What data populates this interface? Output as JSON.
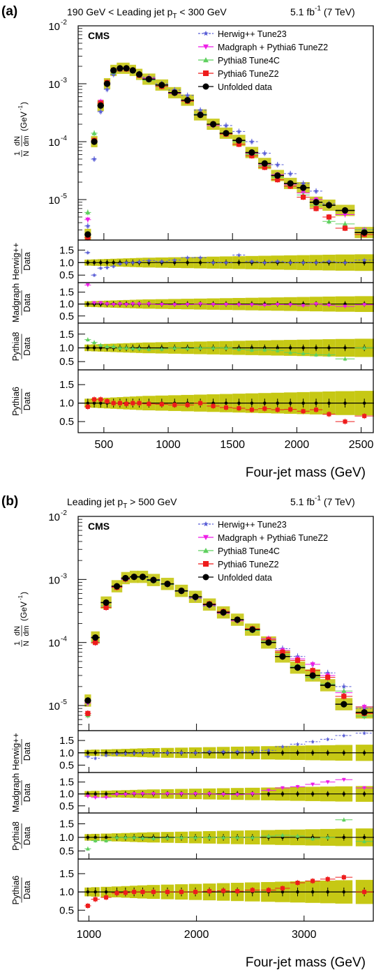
{
  "panels": [
    {
      "letter": "(a)",
      "header_left": "190 GeV < Leading jet p",
      "header_left_sub": "T",
      "header_left_tail": " < 300 GeV",
      "lumi": "5.1 fb",
      "lumi_sup": "-1",
      "energy": " (7 TeV)",
      "cms": "CMS",
      "xlabel": "Four-jet mass (GeV)"
    },
    {
      "letter": "(b)",
      "header_left": "Leading jet p",
      "header_left_sub": "T",
      "header_left_tail": " > 500 GeV",
      "lumi": "5.1 fb",
      "lumi_sup": "-1",
      "energy": " (7 TeV)",
      "cms": "CMS",
      "xlabel": "Four-jet mass (GeV)"
    }
  ],
  "ylabel_main": {
    "frac1": "1",
    "frac2": "N",
    "dN": "dN",
    "dm": "dm",
    "unit": "(GeV",
    "unit_sup": "-1",
    "unit_close": ")"
  },
  "ratio_label_den": "Data",
  "colors": {
    "herwig": "#5a5fd6",
    "madgraph": "#ee1ee6",
    "pythia8": "#5fd05f",
    "pythia6": "#ee1c1c",
    "data": "#000000",
    "band": "#c6c814"
  },
  "chart_data": [
    {
      "type": "scatter",
      "panel": "a",
      "xlim": [
        300,
        2600
      ],
      "ylim": [
        2e-06,
        0.01
      ],
      "yscale": "log",
      "x_ticks": [
        "500",
        "1000",
        "1500",
        "2000",
        "2500"
      ],
      "x_tick_values": [
        500,
        1000,
        1500,
        2000,
        2500
      ],
      "y_ticks": [
        "10",
        "10",
        "10",
        "10"
      ],
      "y_tick_exps": [
        "-2",
        "-3",
        "-4",
        "-5"
      ],
      "legend_position": "top-right",
      "x": [
        375,
        425,
        475,
        525,
        575,
        625,
        675,
        725,
        775,
        850,
        950,
        1050,
        1150,
        1250,
        1350,
        1450,
        1550,
        1650,
        1750,
        1850,
        1950,
        2050,
        2150,
        2250,
        2375,
        2525
      ],
      "xerr": [
        25,
        25,
        25,
        25,
        25,
        25,
        25,
        25,
        25,
        50,
        50,
        50,
        50,
        50,
        50,
        50,
        50,
        50,
        50,
        50,
        50,
        50,
        50,
        50,
        75,
        75
      ],
      "series": [
        {
          "name": "Herwig++ Tune23",
          "key": "herwig",
          "marker": "star",
          "values": [
            3.5e-06,
            5e-05,
            0.00033,
            0.0008,
            0.00145,
            0.00175,
            0.00185,
            0.0017,
            0.0015,
            0.0013,
            0.001,
            0.00078,
            0.00063,
            0.00035,
            0.0002,
            0.00019,
            0.00015,
            0.0001,
            6.3e-05,
            4e-05,
            2.8e-05,
            1.9e-05,
            1.4e-05,
            8.5e-06,
            6.5e-06,
            3e-06
          ]
        },
        {
          "name": "Madgraph + Pythia6 TuneZ2",
          "key": "madgraph",
          "marker": "triangle-down",
          "values": [
            4.5e-06,
            0.0001,
            0.00049,
            0.001,
            0.0016,
            0.0018,
            0.0018,
            0.0017,
            0.00145,
            0.00125,
            0.00095,
            0.00068,
            0.00051,
            0.0003,
            0.00019,
            0.00014,
            0.0001,
            6.3e-05,
            4e-05,
            2.7e-05,
            1.8e-05,
            1.3e-05,
            1e-05,
            8e-06,
            5.5e-06,
            3e-06
          ]
        },
        {
          "name": "Pythia8 Tune4C",
          "key": "pythia8",
          "marker": "triangle-up",
          "values": [
            6e-06,
            0.00014,
            0.00046,
            0.00105,
            0.0016,
            0.00175,
            0.00185,
            0.00165,
            0.0014,
            0.00115,
            0.0009,
            0.0007,
            0.00051,
            0.0003,
            0.0002,
            0.00014,
            0.0001,
            6e-05,
            3.8e-05,
            2.4e-05,
            1.7e-05,
            1.2e-05,
            8e-06,
            4.2e-06,
            3.8e-06,
            3e-06
          ]
        },
        {
          "name": "Pythia6 TuneZ2",
          "key": "pythia6",
          "marker": "square",
          "values": [
            2.2e-06,
            0.000105,
            0.00046,
            0.00105,
            0.0017,
            0.0018,
            0.0018,
            0.0017,
            0.0014,
            0.0012,
            0.0009,
            0.0007,
            0.0005,
            0.00029,
            0.0002,
            0.000135,
            9e-05,
            5.7e-05,
            3.6e-05,
            2.2e-05,
            1.7e-05,
            1.1e-05,
            7e-06,
            5e-06,
            3.2e-06,
            2.5e-06
          ]
        },
        {
          "name": "Unfolded data",
          "key": "data",
          "marker": "circle",
          "values": [
            2.5e-06,
            0.0001,
            0.00042,
            0.001,
            0.0017,
            0.00185,
            0.00185,
            0.0017,
            0.00145,
            0.0012,
            0.00095,
            0.0007,
            0.00052,
            0.00029,
            0.0002,
            0.00014,
            0.000105,
            6.5e-05,
            4.2e-05,
            2.6e-05,
            1.9e-05,
            1.6e-05,
            9e-06,
            8e-06,
            6.5e-06,
            2.7e-06
          ]
        }
      ],
      "ratios": [
        {
          "name": "Herwig++",
          "den": "Data",
          "key": "herwig",
          "marker": "star",
          "values": [
            1.4,
            0.5,
            0.78,
            0.8,
            0.85,
            0.95,
            1.0,
            1.0,
            1.03,
            1.08,
            1.05,
            1.1,
            1.2,
            1.2,
            1.0,
            1.0,
            1.3,
            1.05,
            1.0,
            1.05,
            1.0,
            1.0,
            1.0,
            1.05,
            1.0,
            1.1
          ]
        },
        {
          "name": "Madgraph",
          "den": "Data",
          "key": "madgraph",
          "marker": "triangle-down",
          "values": [
            1.8,
            1.05,
            1.05,
            1.0,
            0.98,
            1.0,
            0.98,
            1.0,
            1.0,
            1.0,
            0.98,
            0.97,
            0.98,
            1.0,
            0.98,
            0.98,
            0.97,
            0.97,
            0.95,
            0.98,
            0.97,
            0.93,
            1.0,
            0.95,
            0.9,
            0.97
          ]
        },
        {
          "name": "Pythia8",
          "den": "Data",
          "key": "pythia8",
          "marker": "triangle-up",
          "values": [
            1.3,
            1.2,
            1.1,
            1.05,
            1.05,
            1.0,
            1.0,
            0.98,
            0.97,
            0.95,
            0.96,
            1.0,
            0.98,
            1.0,
            1.0,
            1.0,
            0.95,
            0.92,
            0.93,
            0.9,
            0.83,
            0.8,
            0.75,
            0.75,
            0.6,
            1.0
          ]
        },
        {
          "name": "Pythia6",
          "den": "Data",
          "key": "pythia6",
          "marker": "square",
          "values": [
            0.9,
            1.1,
            1.1,
            1.05,
            1.0,
            1.0,
            0.98,
            1.0,
            1.0,
            0.98,
            0.97,
            0.95,
            0.95,
            1.0,
            0.92,
            0.88,
            0.86,
            0.82,
            0.85,
            0.82,
            0.83,
            0.78,
            0.82,
            0.7,
            0.5,
            0.65
          ]
        }
      ],
      "ratio_ylim": [
        0.2,
        1.9
      ],
      "ratio_ticks": [
        "0.5",
        "1.0",
        "1.5"
      ]
    },
    {
      "type": "scatter",
      "panel": "b",
      "xlim": [
        900,
        3650
      ],
      "ylim": [
        4e-06,
        0.01
      ],
      "yscale": "log",
      "x_ticks": [
        "1000",
        "2000",
        "3000"
      ],
      "x_tick_values": [
        1000,
        2000,
        3000
      ],
      "y_ticks": [
        "10",
        "10",
        "10",
        "10"
      ],
      "y_tick_exps": [
        "-2",
        "-3",
        "-4",
        "-5"
      ],
      "legend_position": "top-right",
      "x": [
        990,
        1060,
        1160,
        1260,
        1340,
        1420,
        1500,
        1600,
        1730,
        1860,
        1990,
        2120,
        2250,
        2380,
        2520,
        2670,
        2800,
        2940,
        3080,
        3220,
        3370,
        3560
      ],
      "xerr": [
        30,
        40,
        50,
        50,
        40,
        40,
        50,
        60,
        60,
        60,
        60,
        60,
        60,
        60,
        70,
        70,
        70,
        70,
        70,
        70,
        80,
        80
      ],
      "series": [
        {
          "name": "Herwig++ Tune23",
          "key": "herwig",
          "marker": "star",
          "values": [
            1.1e-05,
            0.0001,
            0.00038,
            0.00075,
            0.001,
            0.0011,
            0.0011,
            0.001,
            0.00085,
            0.00065,
            0.0005,
            0.00038,
            0.0003,
            0.00023,
            0.00016,
            0.00011,
            8e-05,
            6e-05,
            4.5e-05,
            3.3e-05,
            2e-05,
            9e-06
          ]
        },
        {
          "name": "Madgraph + Pythia6 TuneZ2",
          "key": "madgraph",
          "marker": "triangle-down",
          "values": [
            1.1e-05,
            0.0001,
            0.00036,
            0.00077,
            0.00102,
            0.0011,
            0.0011,
            0.00098,
            0.00083,
            0.00065,
            0.00051,
            0.00039,
            0.00029,
            0.00022,
            0.00016,
            0.000115,
            7.5e-05,
            5.5e-05,
            4.5e-05,
            3e-05,
            1.6e-05,
            9.5e-06
          ]
        },
        {
          "name": "Pythia8 Tune4C",
          "key": "pythia8",
          "marker": "triangle-up",
          "values": [
            7e-06,
            0.000105,
            0.00038,
            0.00078,
            0.00105,
            0.0011,
            0.00108,
            0.00095,
            0.00083,
            0.00065,
            0.00052,
            0.0004,
            0.0003,
            0.00023,
            0.000155,
            0.000105,
            6.5e-05,
            4.2e-05,
            2.8e-05,
            2.2e-05,
            1.7e-05,
            6.8e-06
          ]
        },
        {
          "name": "Pythia6 TuneZ2",
          "key": "pythia6",
          "marker": "square",
          "values": [
            7.5e-06,
            0.0001,
            0.00036,
            0.00075,
            0.00102,
            0.0011,
            0.0011,
            0.00098,
            0.00085,
            0.00066,
            0.00053,
            0.00041,
            0.00031,
            0.00023,
            0.000165,
            0.00011,
            7e-05,
            5.2e-05,
            3.6e-05,
            2.8e-05,
            1.4e-05,
            7.5e-06
          ]
        },
        {
          "name": "Unfolded data",
          "key": "data",
          "marker": "circle",
          "values": [
            1.2e-05,
            0.00012,
            0.00043,
            0.00078,
            0.00105,
            0.0011,
            0.0011,
            0.00098,
            0.00085,
            0.00066,
            0.00053,
            0.0004,
            0.0003,
            0.00023,
            0.00016,
            0.0001,
            6e-05,
            4e-05,
            3e-05,
            2.1e-05,
            1.05e-05,
            7.8e-06
          ]
        }
      ],
      "ratios": [
        {
          "name": "Herwig++",
          "den": "Data",
          "key": "herwig",
          "marker": "star",
          "values": [
            0.85,
            0.78,
            0.9,
            0.95,
            0.97,
            0.98,
            1.0,
            1.0,
            1.0,
            1.0,
            1.0,
            1.05,
            1.05,
            1.05,
            1.05,
            1.1,
            1.25,
            1.35,
            1.45,
            1.55,
            1.7,
            1.8
          ]
        },
        {
          "name": "Madgraph",
          "den": "Data",
          "key": "madgraph",
          "marker": "triangle-down",
          "values": [
            0.9,
            0.85,
            0.85,
            0.98,
            0.98,
            1.0,
            1.0,
            1.0,
            1.0,
            1.0,
            1.0,
            1.0,
            0.98,
            0.97,
            1.0,
            1.15,
            1.25,
            1.3,
            1.4,
            1.5,
            1.6,
            1.25
          ]
        },
        {
          "name": "Pythia8",
          "den": "Data",
          "key": "pythia8",
          "marker": "triangle-up",
          "values": [
            0.58,
            0.88,
            0.88,
            1.0,
            1.0,
            1.0,
            0.98,
            0.97,
            0.98,
            1.0,
            1.0,
            1.0,
            1.0,
            1.0,
            1.0,
            1.05,
            1.08,
            1.05,
            0.95,
            1.0,
            1.65,
            0.85
          ]
        },
        {
          "name": "Pythia6",
          "den": "Data",
          "key": "pythia6",
          "marker": "square",
          "values": [
            0.62,
            0.8,
            0.85,
            0.97,
            0.98,
            1.0,
            1.0,
            1.0,
            1.0,
            1.0,
            1.0,
            1.02,
            1.03,
            1.02,
            1.05,
            1.05,
            1.1,
            1.25,
            1.3,
            1.35,
            1.4,
            1.0
          ]
        }
      ],
      "ratio_ylim": [
        0.2,
        1.9
      ],
      "ratio_ticks": [
        "0.5",
        "1.0",
        "1.5"
      ]
    }
  ]
}
